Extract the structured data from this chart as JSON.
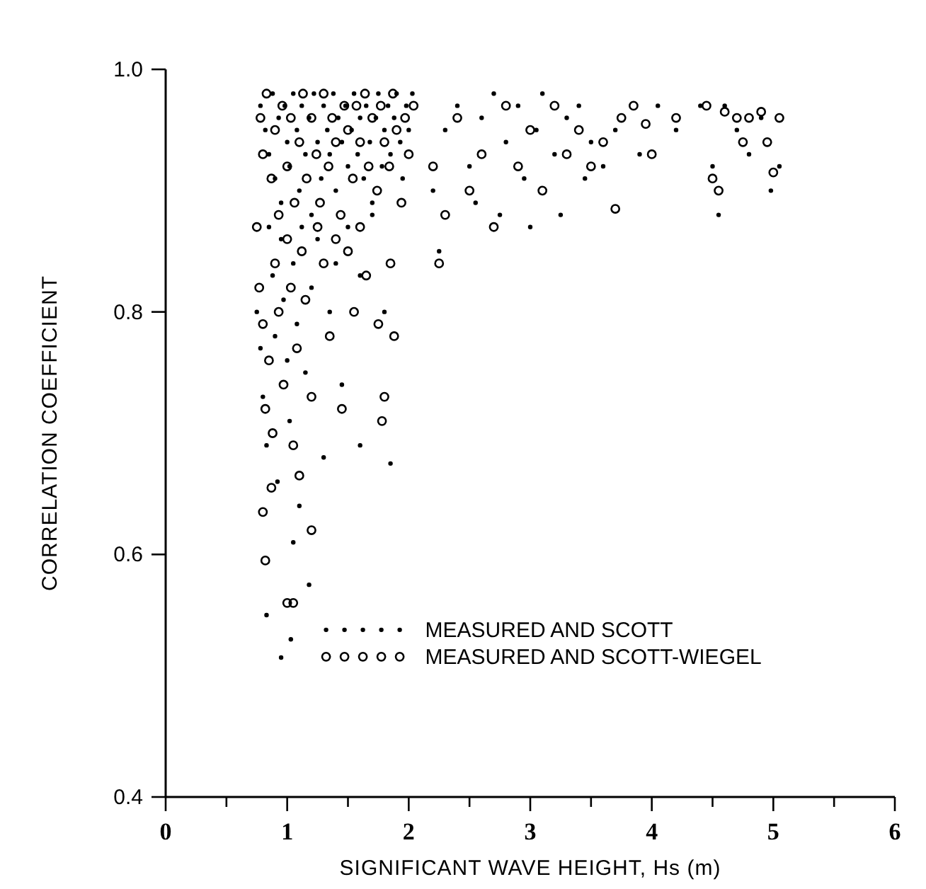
{
  "chart_data": {
    "type": "scatter",
    "xlabel": "SIGNIFICANT WAVE HEIGHT, Hs (m)",
    "ylabel": "CORRELATION COEFFICIENT",
    "xlim": [
      0,
      6
    ],
    "ylim": [
      0.4,
      1.0
    ],
    "xticks": [
      0,
      {
        "value": 0.5,
        "label": null
      },
      1,
      {
        "value": 1.5,
        "label": null
      },
      2,
      {
        "value": 2.5,
        "label": null
      },
      3,
      {
        "value": 3.5,
        "label": null
      },
      4,
      {
        "value": 4.5,
        "label": null
      },
      5,
      {
        "value": 5.5,
        "label": null
      },
      6
    ],
    "yticks": [
      0.4,
      0.6,
      0.8,
      {
        "value": 1.0,
        "label": "1.0"
      }
    ],
    "grid": false,
    "legend": "bottom",
    "marker": "circle",
    "series": [
      {
        "name": "MEASURED AND SCOTT",
        "color": "#000000",
        "x": [
          0.78,
          0.82,
          0.85,
          0.88,
          0.9,
          0.93,
          0.95,
          0.98,
          1.0,
          1.02,
          1.05,
          1.08,
          1.1,
          1.12,
          1.15,
          1.18,
          1.2,
          1.22,
          1.25,
          1.28,
          1.3,
          1.33,
          1.35,
          1.38,
          1.4,
          1.42,
          1.45,
          1.48,
          1.5,
          1.53,
          1.55,
          1.58,
          1.6,
          1.63,
          1.65,
          1.68,
          1.7,
          1.73,
          1.75,
          1.78,
          1.8,
          1.83,
          1.85,
          1.88,
          1.9,
          1.93,
          1.95,
          1.98,
          2.0,
          2.03,
          0.75,
          0.78,
          0.8,
          0.83,
          0.85,
          0.88,
          0.9,
          0.92,
          0.95,
          0.97,
          1.0,
          1.02,
          1.05,
          1.08,
          1.1,
          1.12,
          1.15,
          1.2,
          1.25,
          1.3,
          1.35,
          1.4,
          1.5,
          1.6,
          1.7,
          1.8,
          1.85,
          0.83,
          0.95,
          1.03,
          1.18,
          1.05,
          1.45,
          1.6,
          2.2,
          2.25,
          2.3,
          2.4,
          2.5,
          2.55,
          2.6,
          2.7,
          2.75,
          2.8,
          2.9,
          2.95,
          3.0,
          3.05,
          3.1,
          3.2,
          3.25,
          3.3,
          3.4,
          3.45,
          3.5,
          3.6,
          3.7,
          3.9,
          4.05,
          4.2,
          4.4,
          4.5,
          4.55,
          4.6,
          4.7,
          4.8,
          4.9,
          4.98,
          5.05
        ],
        "values": [
          0.97,
          0.95,
          0.93,
          0.98,
          0.91,
          0.96,
          0.89,
          0.97,
          0.94,
          0.92,
          0.98,
          0.95,
          0.9,
          0.97,
          0.93,
          0.96,
          0.88,
          0.98,
          0.94,
          0.91,
          0.97,
          0.95,
          0.93,
          0.98,
          0.9,
          0.96,
          0.94,
          0.97,
          0.92,
          0.95,
          0.98,
          0.93,
          0.96,
          0.91,
          0.97,
          0.94,
          0.89,
          0.96,
          0.98,
          0.92,
          0.95,
          0.97,
          0.93,
          0.96,
          0.98,
          0.94,
          0.91,
          0.97,
          0.95,
          0.98,
          0.8,
          0.77,
          0.73,
          0.69,
          0.87,
          0.83,
          0.78,
          0.66,
          0.86,
          0.81,
          0.76,
          0.71,
          0.84,
          0.79,
          0.64,
          0.87,
          0.75,
          0.82,
          0.86,
          0.68,
          0.8,
          0.84,
          0.87,
          0.83,
          0.88,
          0.8,
          0.675,
          0.55,
          0.515,
          0.53,
          0.575,
          0.61,
          0.74,
          0.69,
          0.9,
          0.85,
          0.95,
          0.97,
          0.92,
          0.89,
          0.96,
          0.98,
          0.88,
          0.94,
          0.97,
          0.91,
          0.87,
          0.95,
          0.98,
          0.93,
          0.88,
          0.96,
          0.97,
          0.91,
          0.94,
          0.92,
          0.95,
          0.93,
          0.97,
          0.95,
          0.97,
          0.92,
          0.88,
          0.97,
          0.95,
          0.93,
          0.96,
          0.9,
          0.92
        ]
      },
      {
        "name": "MEASURED AND SCOTT-WIEGEL",
        "color": "#000000",
        "x": [
          0.78,
          0.8,
          0.83,
          0.87,
          0.9,
          0.93,
          0.96,
          1.0,
          1.03,
          1.06,
          1.1,
          1.13,
          1.16,
          1.2,
          1.24,
          1.27,
          1.3,
          1.34,
          1.37,
          1.4,
          1.44,
          1.47,
          1.5,
          1.54,
          1.57,
          1.6,
          1.64,
          1.67,
          1.7,
          1.74,
          1.77,
          1.8,
          1.84,
          1.87,
          1.9,
          1.94,
          1.97,
          2.0,
          2.04,
          0.75,
          0.77,
          0.8,
          0.82,
          0.85,
          0.88,
          0.9,
          0.93,
          0.97,
          1.0,
          1.03,
          1.05,
          1.08,
          1.12,
          1.15,
          1.2,
          1.25,
          1.3,
          1.35,
          1.4,
          1.45,
          1.5,
          1.55,
          1.6,
          1.65,
          1.75,
          1.8,
          1.78,
          1.85,
          1.88,
          0.82,
          0.87,
          1.0,
          1.05,
          1.2,
          1.1,
          0.8,
          2.2,
          2.25,
          2.3,
          2.4,
          2.5,
          2.6,
          2.7,
          2.8,
          2.9,
          3.0,
          3.1,
          3.2,
          3.3,
          3.4,
          3.5,
          3.6,
          3.7,
          3.75,
          3.85,
          3.95,
          4.0,
          4.2,
          4.45,
          4.5,
          4.55,
          4.6,
          4.7,
          4.75,
          4.8,
          4.9,
          4.95,
          5.0,
          5.05
        ],
        "values": [
          0.96,
          0.93,
          0.98,
          0.91,
          0.95,
          0.88,
          0.97,
          0.92,
          0.96,
          0.89,
          0.94,
          0.98,
          0.91,
          0.96,
          0.93,
          0.89,
          0.98,
          0.92,
          0.96,
          0.94,
          0.88,
          0.97,
          0.95,
          0.91,
          0.97,
          0.94,
          0.98,
          0.92,
          0.96,
          0.9,
          0.97,
          0.94,
          0.92,
          0.98,
          0.95,
          0.89,
          0.96,
          0.93,
          0.97,
          0.87,
          0.82,
          0.79,
          0.72,
          0.76,
          0.7,
          0.84,
          0.8,
          0.74,
          0.86,
          0.82,
          0.69,
          0.77,
          0.85,
          0.81,
          0.73,
          0.87,
          0.84,
          0.78,
          0.86,
          0.72,
          0.85,
          0.8,
          0.87,
          0.83,
          0.79,
          0.73,
          0.71,
          0.84,
          0.78,
          0.595,
          0.655,
          0.56,
          0.56,
          0.62,
          0.665,
          0.635,
          0.92,
          0.84,
          0.88,
          0.96,
          0.9,
          0.93,
          0.87,
          0.97,
          0.92,
          0.95,
          0.9,
          0.97,
          0.93,
          0.95,
          0.92,
          0.94,
          0.885,
          0.96,
          0.97,
          0.955,
          0.93,
          0.96,
          0.97,
          0.91,
          0.9,
          0.965,
          0.96,
          0.94,
          0.96,
          0.965,
          0.94,
          0.915,
          0.96
        ]
      }
    ]
  }
}
